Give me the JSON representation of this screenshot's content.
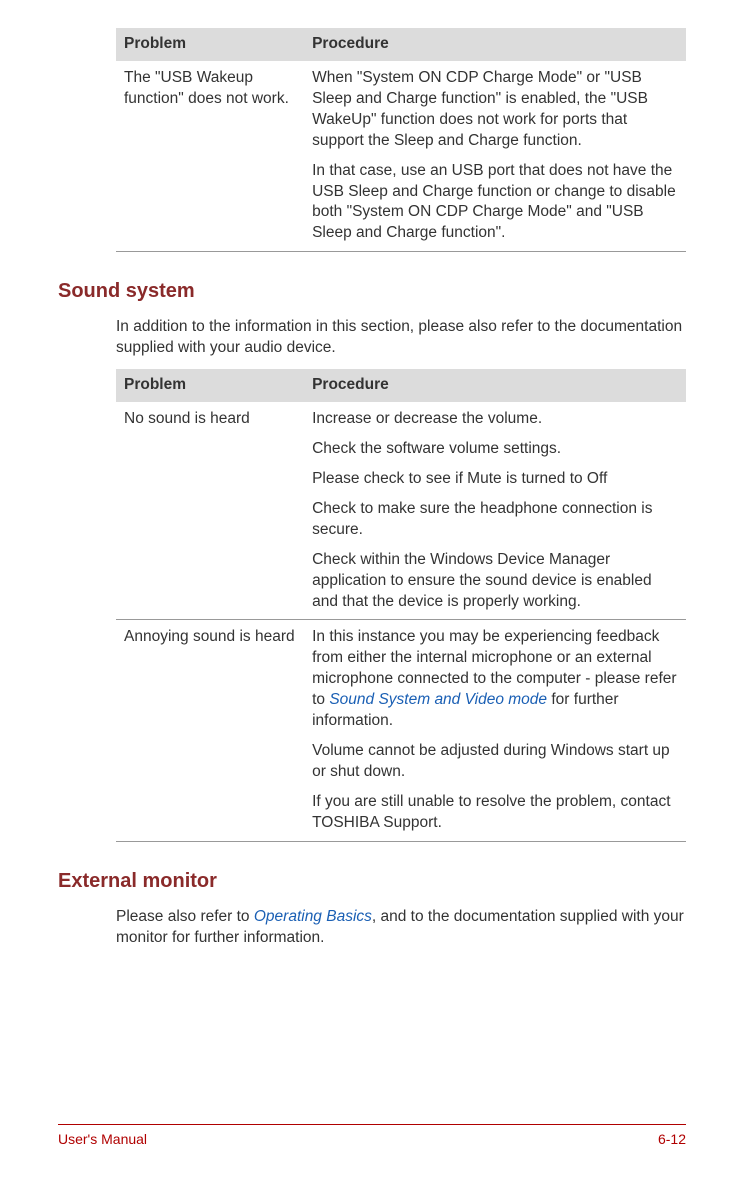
{
  "colors": {
    "heading": "#8a2a2a",
    "link": "#1a5fb4",
    "footer": "#b00000",
    "header_bg": "#dcdcdc",
    "border": "#999999"
  },
  "table1": {
    "headers": {
      "col1": "Problem",
      "col2": "Procedure"
    },
    "row1": {
      "problem": "The \"USB Wakeup function\" does not work.",
      "p1": "When \"System ON CDP Charge Mode\" or \"USB Sleep and Charge function\" is enabled, the \"USB WakeUp\" function does not work for ports that support the Sleep and Charge function.",
      "p2": "In that case, use an USB port that does not have the USB Sleep and Charge function or change to disable both \"System ON CDP Charge Mode\" and \"USB Sleep and Charge function\"."
    }
  },
  "section1": {
    "title": "Sound system",
    "intro": "In addition to the information in this section, please also refer to the documentation supplied with your audio device."
  },
  "table2": {
    "headers": {
      "col1": "Problem",
      "col2": "Procedure"
    },
    "row1": {
      "problem": "No sound is heard",
      "p1": "Increase or decrease the volume.",
      "p2": "Check the software volume settings.",
      "p3": "Please check to see if Mute is turned to Off",
      "p4": "Check to make sure the headphone connection is secure.",
      "p5": "Check within the Windows Device Manager application to ensure the sound device is enabled and that the device is properly working."
    },
    "row2": {
      "problem": "Annoying sound is heard",
      "p1_pre": "In this instance you may be experiencing feedback from either the internal microphone or an external microphone connected to the computer - please refer to ",
      "p1_link": "Sound System and Video mode",
      "p1_post": " for further information.",
      "p2": "Volume cannot be adjusted during Windows start up or shut down.",
      "p3": "If you are still unable to resolve the problem, contact TOSHIBA Support."
    }
  },
  "section2": {
    "title": "External monitor",
    "intro_pre": "Please also refer to ",
    "intro_link": "Operating Basics",
    "intro_post": ", and to the documentation supplied with your monitor for further information."
  },
  "footer": {
    "left": "User's Manual",
    "right": "6-12"
  }
}
